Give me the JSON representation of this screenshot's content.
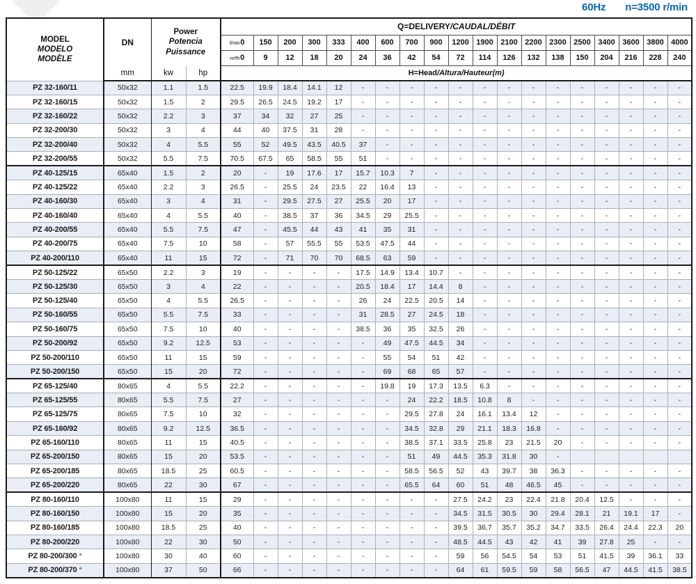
{
  "title": {
    "frequency": "60Hz",
    "speed": "n=3500 r/min"
  },
  "footnote_star": "*",
  "colors": {
    "accent_blue": "#0a62b8",
    "row_shade": "#e9edf5",
    "border_dark": "#1a1a1a",
    "grid_light": "#a9afb8",
    "star_blue": "#4a86d8",
    "corner_gray": "#efefef"
  },
  "header": {
    "model_lines": [
      "MODEL",
      "MODELO",
      "MODÈLE"
    ],
    "dn_label": "DN",
    "dn_unit": "mm",
    "power_lines": [
      "Power",
      "Potencia",
      "Puissance"
    ],
    "kw_label": "kw",
    "hp_label": "hp",
    "q_title": "Q=DELIVERY",
    "q_title_italic": "/CAUDAL/DÉBIT",
    "flow_lmin_label": "l/min",
    "flow_m3h_label": "m³/h",
    "flow_lmin": [
      "0",
      "150",
      "200",
      "300",
      "333",
      "400",
      "600",
      "700",
      "900",
      "1200",
      "1900",
      "2100",
      "2200",
      "2300",
      "2500",
      "3400",
      "3600",
      "3800",
      "4000"
    ],
    "flow_m3h": [
      "0",
      "9",
      "12",
      "18",
      "20",
      "24",
      "36",
      "42",
      "54",
      "72",
      "114",
      "126",
      "132",
      "138",
      "150",
      "204",
      "216",
      "228",
      "240"
    ],
    "head_title": "H=Head",
    "head_title_italic": "/Altura/Hauteur(m)"
  },
  "rows": [
    {
      "model": "PZ 32-160/11",
      "dn": "50x32",
      "kw": "1.1",
      "hp": "1.5",
      "heads": [
        "22.5",
        "19.9",
        "18.4",
        "14.1",
        "12",
        "-",
        "-",
        "-",
        "-",
        "-",
        "-",
        "-",
        "-",
        "-",
        "-",
        "-",
        "-",
        "-",
        "-"
      ]
    },
    {
      "model": "PZ 32-160/15",
      "dn": "50x32",
      "kw": "1.5",
      "hp": "2",
      "heads": [
        "29.5",
        "26.5",
        "24.5",
        "19.2",
        "17",
        "-",
        "-",
        "-",
        "-",
        "-",
        "-",
        "-",
        "-",
        "-",
        "-",
        "-",
        "-",
        "-",
        "-"
      ]
    },
    {
      "model": "PZ 32-160/22",
      "dn": "50x32",
      "kw": "2.2",
      "hp": "3",
      "heads": [
        "37",
        "34",
        "32",
        "27",
        "25",
        "-",
        "-",
        "-",
        "-",
        "-",
        "-",
        "-",
        "-",
        "-",
        "-",
        "-",
        "-",
        "-",
        "-"
      ]
    },
    {
      "model": "PZ 32-200/30",
      "dn": "50x32",
      "kw": "3",
      "hp": "4",
      "heads": [
        "44",
        "40",
        "37.5",
        "31",
        "28",
        "-",
        "-",
        "-",
        "-",
        "-",
        "-",
        "-",
        "-",
        "-",
        "-",
        "-",
        "-",
        "-",
        "-"
      ]
    },
    {
      "model": "PZ 32-200/40",
      "dn": "50x32",
      "kw": "4",
      "hp": "5.5",
      "heads": [
        "55",
        "52",
        "49.5",
        "43.5",
        "40.5",
        "37",
        "-",
        "-",
        "-",
        "-",
        "-",
        "-",
        "-",
        "-",
        "-",
        "-",
        "-",
        "-",
        "-"
      ]
    },
    {
      "model": "PZ 32-200/55",
      "dn": "50x32",
      "kw": "5.5",
      "hp": "7.5",
      "heads": [
        "70.5",
        "67.5",
        "65",
        "58.5",
        "55",
        "51",
        "-",
        "-",
        "-",
        "-",
        "-",
        "-",
        "-",
        "-",
        "-",
        "-",
        "-",
        "-",
        "-"
      ],
      "group_end": true
    },
    {
      "model": "PZ 40-125/15",
      "dn": "65x40",
      "kw": "1.5",
      "hp": "2",
      "heads": [
        "20",
        "-",
        "19",
        "17.6",
        "17",
        "15.7",
        "10.3",
        "7",
        "-",
        "-",
        "-",
        "-",
        "-",
        "-",
        "-",
        "-",
        "-",
        "-",
        "-"
      ]
    },
    {
      "model": "PZ 40-125/22",
      "dn": "65x40",
      "kw": "2.2",
      "hp": "3",
      "heads": [
        "26.5",
        "-",
        "25.5",
        "24",
        "23.5",
        "22",
        "16.4",
        "13",
        "-",
        "-",
        "-",
        "-",
        "-",
        "-",
        "-",
        "-",
        "-",
        "-",
        "-"
      ]
    },
    {
      "model": "PZ 40-160/30",
      "dn": "65x40",
      "kw": "3",
      "hp": "4",
      "heads": [
        "31",
        "-",
        "29.5",
        "27.5",
        "27",
        "25.5",
        "20",
        "17",
        "-",
        "-",
        "-",
        "-",
        "-",
        "-",
        "-",
        "-",
        "-",
        "-",
        "-"
      ]
    },
    {
      "model": "PZ 40-160/40",
      "dn": "65x40",
      "kw": "4",
      "hp": "5.5",
      "heads": [
        "40",
        "-",
        "38.5",
        "37",
        "36",
        "34.5",
        "29",
        "25.5",
        "-",
        "-",
        "-",
        "-",
        "-",
        "-",
        "-",
        "-",
        "-",
        "-",
        "-"
      ]
    },
    {
      "model": "PZ 40-200/55",
      "dn": "65x40",
      "kw": "5.5",
      "hp": "7.5",
      "heads": [
        "47",
        "-",
        "45.5",
        "44",
        "43",
        "41",
        "35",
        "31",
        "-",
        "-",
        "-",
        "-",
        "-",
        "-",
        "-",
        "-",
        "-",
        "-",
        "-"
      ]
    },
    {
      "model": "PZ 40-200/75",
      "dn": "65x40",
      "kw": "7.5",
      "hp": "10",
      "heads": [
        "58",
        "-",
        "57",
        "55.5",
        "55",
        "53.5",
        "47.5",
        "44",
        "-",
        "-",
        "-",
        "-",
        "-",
        "-",
        "-",
        "-",
        "-",
        "-",
        "-"
      ]
    },
    {
      "model": "PZ 40-200/110",
      "dn": "65x40",
      "kw": "11",
      "hp": "15",
      "heads": [
        "72",
        "-",
        "71",
        "70",
        "70",
        "68.5",
        "63",
        "59",
        "-",
        "-",
        "-",
        "-",
        "-",
        "-",
        "-",
        "-",
        "-",
        "-",
        "-"
      ],
      "group_end": true
    },
    {
      "model": "PZ 50-125/22",
      "dn": "65x50",
      "kw": "2.2",
      "hp": "3",
      "heads": [
        "19",
        "-",
        "-",
        "-",
        "-",
        "17.5",
        "14.9",
        "13.4",
        "10.7",
        "-",
        "-",
        "-",
        "-",
        "-",
        "-",
        "-",
        "-",
        "-",
        "-"
      ]
    },
    {
      "model": "PZ 50-125/30",
      "dn": "65x50",
      "kw": "3",
      "hp": "4",
      "heads": [
        "22",
        "-",
        "-",
        "-",
        "-",
        "20.5",
        "18.4",
        "17",
        "14.4",
        "8",
        "-",
        "-",
        "-",
        "-",
        "-",
        "-",
        "-",
        "-",
        "-"
      ]
    },
    {
      "model": "PZ 50-125/40",
      "dn": "65x50",
      "kw": "4",
      "hp": "5.5",
      "heads": [
        "26.5",
        "-",
        "-",
        "-",
        "-",
        "26",
        "24",
        "22.5",
        "20.5",
        "14",
        "-",
        "-",
        "-",
        "-",
        "-",
        "-",
        "-",
        "-",
        "-"
      ]
    },
    {
      "model": "PZ 50-160/55",
      "dn": "65x50",
      "kw": "5.5",
      "hp": "7.5",
      "heads": [
        "33",
        "-",
        "-",
        "-",
        "-",
        "31",
        "28.5",
        "27",
        "24.5",
        "18",
        "-",
        "-",
        "-",
        "-",
        "-",
        "-",
        "-",
        "-",
        "-"
      ]
    },
    {
      "model": "PZ 50-160/75",
      "dn": "65x50",
      "kw": "7.5",
      "hp": "10",
      "heads": [
        "40",
        "-",
        "-",
        "-",
        "-",
        "38.5",
        "36",
        "35",
        "32.5",
        "26",
        "-",
        "-",
        "-",
        "-",
        "-",
        "-",
        "-",
        "-",
        "-"
      ]
    },
    {
      "model": "PZ 50-200/92",
      "dn": "65x50",
      "kw": "9.2",
      "hp": "12.5",
      "heads": [
        "53",
        "-",
        "-",
        "-",
        "-",
        "-",
        "49",
        "47.5",
        "44.5",
        "34",
        "-",
        "-",
        "-",
        "-",
        "-",
        "-",
        "-",
        "-",
        "-"
      ]
    },
    {
      "model": "PZ 50-200/110",
      "dn": "65x50",
      "kw": "11",
      "hp": "15",
      "heads": [
        "59",
        "-",
        "-",
        "-",
        "-",
        "-",
        "55",
        "54",
        "51",
        "42",
        "-",
        "-",
        "-",
        "-",
        "-",
        "-",
        "-",
        "-",
        "-"
      ]
    },
    {
      "model": "PZ 50-200/150",
      "dn": "65x50",
      "kw": "15",
      "hp": "20",
      "heads": [
        "72",
        "-",
        "-",
        "-",
        "-",
        "-",
        "69",
        "68",
        "65",
        "57",
        "-",
        "-",
        "-",
        "-",
        "-",
        "-",
        "-",
        "-",
        "-"
      ],
      "group_end": true
    },
    {
      "model": "PZ 65-125/40",
      "dn": "80x65",
      "kw": "4",
      "hp": "5.5",
      "heads": [
        "22.2",
        "-",
        "-",
        "-",
        "-",
        "-",
        "19.8",
        "19",
        "17.3",
        "13.5",
        "6.3",
        "-",
        "-",
        "-",
        "-",
        "-",
        "-",
        "-",
        "-"
      ]
    },
    {
      "model": "PZ 65-125/55",
      "dn": "80x65",
      "kw": "5.5",
      "hp": "7.5",
      "heads": [
        "27",
        "-",
        "-",
        "-",
        "-",
        "-",
        "-",
        "24",
        "22.2",
        "18.5",
        "10.8",
        "8",
        "-",
        "-",
        "-",
        "-",
        "-",
        "-",
        "-"
      ]
    },
    {
      "model": "PZ 65-125/75",
      "dn": "80x65",
      "kw": "7.5",
      "hp": "10",
      "heads": [
        "32",
        "-",
        "-",
        "-",
        "-",
        "-",
        "-",
        "29.5",
        "27.8",
        "24",
        "16.1",
        "13.4",
        "12",
        "-",
        "-",
        "-",
        "-",
        "-",
        "-"
      ]
    },
    {
      "model": "PZ 65-160/92",
      "dn": "80x65",
      "kw": "9.2",
      "hp": "12.5",
      "heads": [
        "36.5",
        "-",
        "-",
        "-",
        "-",
        "-",
        "-",
        "34.5",
        "32.8",
        "29",
        "21.1",
        "18.3",
        "16.8",
        "-",
        "-",
        "-",
        "-",
        "-",
        "-"
      ]
    },
    {
      "model": "PZ 65-160/110",
      "dn": "80x65",
      "kw": "11",
      "hp": "15",
      "heads": [
        "40.5",
        "-",
        "-",
        "-",
        "-",
        "-",
        "-",
        "38.5",
        "37.1",
        "33.5",
        "25.8",
        "23",
        "21.5",
        "20",
        "-",
        "-",
        "-",
        "-",
        "-"
      ]
    },
    {
      "model": "PZ 65-200/150",
      "dn": "80x65",
      "kw": "15",
      "hp": "20",
      "heads": [
        "53.5",
        "-",
        "-",
        "-",
        "-",
        "-",
        "-",
        "51",
        "49",
        "44.5",
        "35.3",
        "31.8",
        "30",
        "-",
        "",
        "",
        "",
        "",
        ""
      ]
    },
    {
      "model": "PZ 65-200/185",
      "dn": "80x65",
      "kw": "18.5",
      "hp": "25",
      "heads": [
        "60.5",
        "-",
        "-",
        "-",
        "-",
        "-",
        "-",
        "58.5",
        "56.5",
        "52",
        "43",
        "39.7",
        "38",
        "36.3",
        "-",
        "-",
        "-",
        "-",
        "-"
      ]
    },
    {
      "model": "PZ 65-200/220",
      "dn": "80x65",
      "kw": "22",
      "hp": "30",
      "heads": [
        "67",
        "-",
        "-",
        "-",
        "-",
        "-",
        "-",
        "65.5",
        "64",
        "60",
        "51",
        "48",
        "46.5",
        "45",
        "-",
        "-",
        "-",
        "-",
        "-"
      ],
      "group_end": true
    },
    {
      "model": "PZ 80-160/110",
      "dn": "100x80",
      "kw": "11",
      "hp": "15",
      "heads": [
        "29",
        "-",
        "-",
        "-",
        "-",
        "-",
        "-",
        "-",
        "-",
        "27.5",
        "24.2",
        "23",
        "22.4",
        "21.8",
        "20.4",
        "12.5",
        "-",
        "-",
        "-"
      ]
    },
    {
      "model": "PZ 80-160/150",
      "dn": "100x80",
      "kw": "15",
      "hp": "20",
      "heads": [
        "35",
        "-",
        "-",
        "-",
        "-",
        "-",
        "-",
        "-",
        "-",
        "34.5",
        "31.5",
        "30.5",
        "30",
        "29.4",
        "28.1",
        "21",
        "19.1",
        "17",
        "-"
      ]
    },
    {
      "model": "PZ 80-160/185",
      "dn": "100x80",
      "kw": "18.5",
      "hp": "25",
      "heads": [
        "40",
        "-",
        "-",
        "-",
        "-",
        "-",
        "-",
        "-",
        "-",
        "39.5",
        "36.7",
        "35.7",
        "35.2",
        "34.7",
        "33.5",
        "26.4",
        "24.4",
        "22.3",
        "20"
      ]
    },
    {
      "model": "PZ 80-200/220",
      "dn": "100x80",
      "kw": "22",
      "hp": "30",
      "heads": [
        "50",
        "-",
        "-",
        "-",
        "-",
        "-",
        "-",
        "-",
        "-",
        "48.5",
        "44.5",
        "43",
        "42",
        "41",
        "39",
        "27.8",
        "25",
        "-",
        "-"
      ]
    },
    {
      "model": "PZ 80-200/300",
      "star": true,
      "dn": "100x80",
      "kw": "30",
      "hp": "40",
      "heads": [
        "60",
        "-",
        "-",
        "-",
        "-",
        "-",
        "-",
        "-",
        "-",
        "59",
        "56",
        "54.5",
        "54",
        "53",
        "51",
        "41.5",
        "39",
        "36.1",
        "33"
      ]
    },
    {
      "model": "PZ 80-200/370",
      "star": true,
      "dn": "100x80",
      "kw": "37",
      "hp": "50",
      "heads": [
        "66",
        "-",
        "-",
        "-",
        "-",
        "-",
        "-",
        "-",
        "-",
        "64",
        "61",
        "59.5",
        "59",
        "58",
        "56.5",
        "47",
        "44.5",
        "41.5",
        "38.5"
      ]
    }
  ]
}
